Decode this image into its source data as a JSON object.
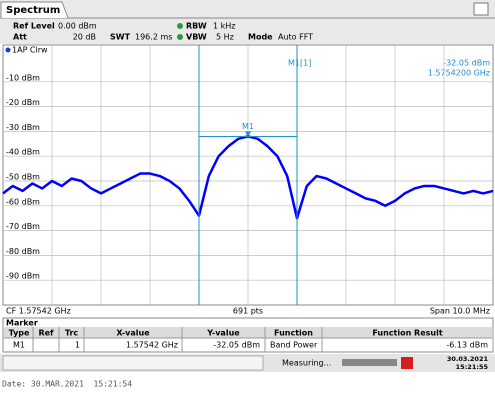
{
  "tab": "Spectrum",
  "settings": {
    "ref_level_label": "Ref Level",
    "ref_level": "0.00 dBm",
    "att_label": "Att",
    "att": "20 dB",
    "swt_label": "SWT",
    "swt": "196.2 ms",
    "rbw_label": "RBW",
    "rbw": "1 kHz",
    "vbw_label": "VBW",
    "vbw": "5 Hz",
    "mode_label": "Mode",
    "mode": "Auto FFT"
  },
  "chart_data": {
    "type": "line",
    "trace_label": "1AP Clrw",
    "color": "#0000ff",
    "grid": true,
    "ylim": [
      -100,
      0
    ],
    "yticks": [
      {
        "value": -10,
        "label": "-10 dBm"
      },
      {
        "value": -20,
        "label": "-20 dBm"
      },
      {
        "value": -30,
        "label": "-30 dBm"
      },
      {
        "value": -40,
        "label": "-40 dBm"
      },
      {
        "value": -50,
        "label": "-50 dBm"
      },
      {
        "value": -60,
        "label": "-60 dBm"
      },
      {
        "value": -70,
        "label": "-70 dBm"
      },
      {
        "value": -80,
        "label": "-80 dBm"
      },
      {
        "value": -90,
        "label": "-90 dBm"
      }
    ],
    "values": [
      -55,
      -52,
      -54,
      -51,
      -53,
      -50,
      -52,
      -49,
      -50,
      -53,
      -55,
      -53,
      -51,
      -49,
      -47,
      -47,
      -48,
      -50,
      -53,
      -58,
      -64,
      -48,
      -40,
      -36,
      -33,
      -32,
      -33,
      -36,
      -40,
      -48,
      -65,
      -52,
      -48,
      -49,
      -51,
      -53,
      -55,
      -57,
      -58,
      -60,
      -58,
      -55,
      -53,
      -52,
      -52,
      -53,
      -54,
      -55,
      -54,
      -55,
      -54
    ],
    "marker": {
      "name": "M1",
      "header": "M1[1]",
      "value": -32.05,
      "value_label": "-32.05 dBm",
      "freq": "1.5754200 GHz"
    },
    "footer": {
      "cf": "CF 1.57542 GHz",
      "points": "691 pts",
      "span": "Span 10.0 MHz"
    }
  },
  "marker_table": {
    "title": "Marker",
    "columns": [
      "Type",
      "Ref",
      "Trc",
      "X-value",
      "Y-value",
      "Function",
      "Function Result"
    ],
    "row": {
      "type": "M1",
      "trc": "1",
      "x_value": "1.57542 GHz",
      "y_value": "-32.05 dBm",
      "function": "Band Power",
      "result": "-6.13 dBm"
    }
  },
  "status": {
    "measuring": "Measuring...",
    "date": "30.03.2021",
    "time": "15:21:55"
  },
  "footer_line": "Date: 30.MAR.2021  15:21:54"
}
